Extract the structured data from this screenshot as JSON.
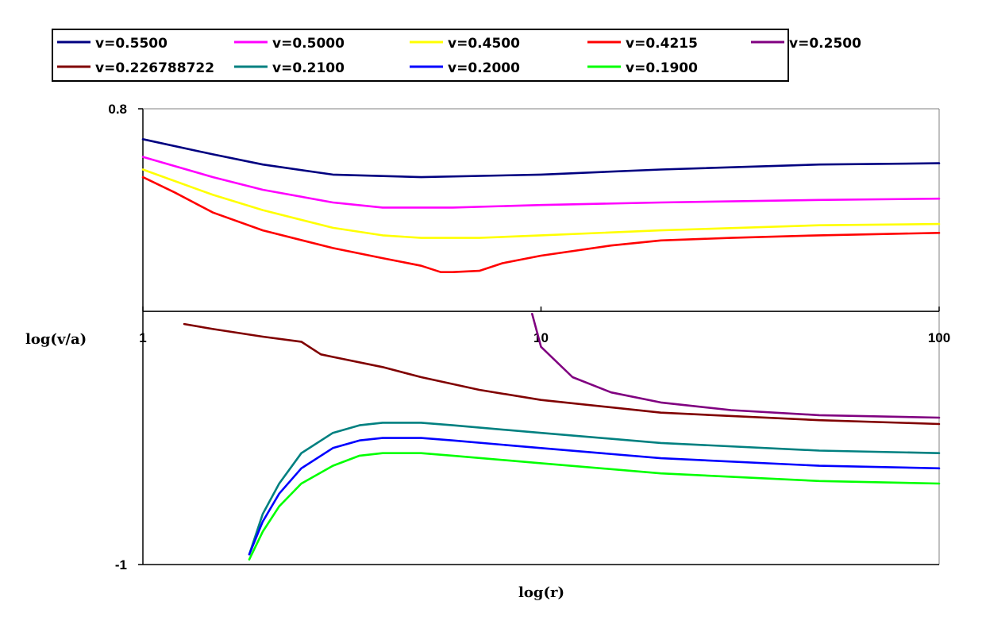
{
  "chart_data": {
    "type": "line",
    "title": "",
    "xlabel": "log(r)",
    "ylabel": "log(v/a)",
    "x_scale": "log",
    "xlim": [
      1,
      100
    ],
    "ylim": [
      -1,
      0.8
    ],
    "x_axis_at_y": 0,
    "x_ticks": [
      {
        "value": 1,
        "label": "1"
      },
      {
        "value": 10,
        "label": "10"
      },
      {
        "value": 100,
        "label": "100"
      }
    ],
    "y_ticks": [
      {
        "value": 0.8,
        "label": "0.8"
      },
      {
        "value": -1,
        "label": "-1"
      }
    ],
    "grid": false,
    "legend_position": "top",
    "series": [
      {
        "name": "v=0.5500",
        "color": "#000080",
        "x": [
          1,
          1.5,
          2,
          3,
          5,
          10,
          20,
          50,
          100
        ],
        "y": [
          0.68,
          0.62,
          0.58,
          0.54,
          0.53,
          0.54,
          0.56,
          0.58,
          0.585
        ]
      },
      {
        "name": "v=0.5000",
        "color": "#ff00ff",
        "x": [
          1,
          1.5,
          2,
          3,
          4,
          6,
          10,
          20,
          50,
          100
        ],
        "y": [
          0.61,
          0.53,
          0.48,
          0.43,
          0.41,
          0.41,
          0.42,
          0.43,
          0.44,
          0.445
        ]
      },
      {
        "name": "v=0.4500",
        "color": "#ffff00",
        "x": [
          1,
          1.5,
          2,
          3,
          4,
          5,
          7,
          10,
          20,
          50,
          100
        ],
        "y": [
          0.56,
          0.46,
          0.4,
          0.33,
          0.3,
          0.29,
          0.29,
          0.3,
          0.32,
          0.34,
          0.345
        ]
      },
      {
        "name": "v=0.4215",
        "color": "#ff0000",
        "x": [
          1,
          1.2,
          1.5,
          2,
          3,
          4,
          5,
          5.6,
          6,
          7,
          8,
          10,
          15,
          20,
          30,
          50,
          100
        ],
        "y": [
          0.53,
          0.47,
          0.39,
          0.32,
          0.25,
          0.21,
          0.18,
          0.155,
          0.155,
          0.16,
          0.19,
          0.22,
          0.26,
          0.28,
          0.29,
          0.3,
          0.31
        ]
      },
      {
        "name": "v=0.2500",
        "color": "#800080",
        "x": [
          9.5,
          10,
          12,
          15,
          20,
          30,
          50,
          100
        ],
        "y": [
          -0.01,
          -0.14,
          -0.26,
          -0.32,
          -0.36,
          -0.39,
          -0.41,
          -0.42
        ]
      },
      {
        "name": "v=0.226788722",
        "color": "#800000",
        "x": [
          1.27,
          1.5,
          2,
          2.5,
          2.8,
          3,
          4,
          5,
          7,
          10,
          20,
          50,
          100
        ],
        "y": [
          -0.05,
          -0.07,
          -0.1,
          -0.12,
          -0.17,
          -0.18,
          -0.22,
          -0.26,
          -0.31,
          -0.35,
          -0.4,
          -0.43,
          -0.445
        ]
      },
      {
        "name": "v=0.2100",
        "color": "#008080",
        "x": [
          1.85,
          2,
          2.2,
          2.5,
          3,
          3.5,
          4,
          5,
          6,
          10,
          20,
          50,
          100
        ],
        "y": [
          -0.96,
          -0.8,
          -0.68,
          -0.56,
          -0.48,
          -0.45,
          -0.44,
          -0.44,
          -0.45,
          -0.48,
          -0.52,
          -0.55,
          -0.56
        ]
      },
      {
        "name": "v=0.2000",
        "color": "#0000ff",
        "x": [
          1.85,
          2,
          2.2,
          2.5,
          3,
          3.5,
          4,
          5,
          6,
          10,
          20,
          50,
          100
        ],
        "y": [
          -0.96,
          -0.83,
          -0.72,
          -0.62,
          -0.54,
          -0.51,
          -0.5,
          -0.5,
          -0.51,
          -0.54,
          -0.58,
          -0.61,
          -0.62
        ]
      },
      {
        "name": "v=0.1900",
        "color": "#00ff00",
        "x": [
          1.85,
          2,
          2.2,
          2.5,
          3,
          3.5,
          4,
          5,
          6,
          10,
          20,
          50,
          100
        ],
        "y": [
          -0.98,
          -0.87,
          -0.77,
          -0.68,
          -0.61,
          -0.57,
          -0.56,
          -0.56,
          -0.57,
          -0.6,
          -0.64,
          -0.67,
          -0.68
        ]
      }
    ]
  }
}
